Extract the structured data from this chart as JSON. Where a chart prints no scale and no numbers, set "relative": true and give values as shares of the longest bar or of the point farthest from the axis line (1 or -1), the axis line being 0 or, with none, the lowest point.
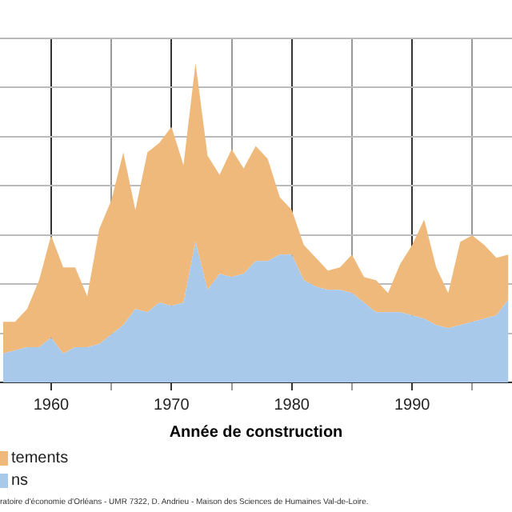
{
  "chart_data": {
    "type": "area",
    "relative": true,
    "stacked": true,
    "xlabel": "Année de construction",
    "x": [
      1956,
      1957,
      1958,
      1959,
      1960,
      1961,
      1962,
      1963,
      1964,
      1965,
      1966,
      1967,
      1968,
      1969,
      1970,
      1971,
      1972,
      1973,
      1974,
      1975,
      1976,
      1977,
      1978,
      1979,
      1980,
      1981,
      1982,
      1983,
      1984,
      1985,
      1986,
      1987,
      1988,
      1989,
      1990,
      1991,
      1992,
      1993,
      1994,
      1995,
      1996,
      1997,
      1998
    ],
    "xlim": [
      1956,
      1998
    ],
    "xticks": [
      1960,
      {
        "value": 1965,
        "label": null
      },
      1970,
      {
        "value": 1975,
        "label": null
      },
      1980,
      {
        "value": 1985,
        "label": null
      },
      1990,
      {
        "value": 1995,
        "label": null
      }
    ],
    "series": [
      {
        "name": "ns",
        "color": "#a9c9eb",
        "values": [
          0.09,
          0.1,
          0.11,
          0.11,
          0.14,
          0.09,
          0.11,
          0.11,
          0.12,
          0.15,
          0.18,
          0.23,
          0.22,
          0.25,
          0.24,
          0.25,
          0.44,
          0.29,
          0.34,
          0.33,
          0.34,
          0.38,
          0.38,
          0.4,
          0.4,
          0.32,
          0.3,
          0.29,
          0.29,
          0.28,
          0.25,
          0.22,
          0.22,
          0.22,
          0.21,
          0.2,
          0.18,
          0.17,
          0.18,
          0.19,
          0.2,
          0.21,
          0.26
        ]
      },
      {
        "name": "tements",
        "color": "#efb97b",
        "values": [
          0.1,
          0.09,
          0.12,
          0.21,
          0.32,
          0.27,
          0.25,
          0.16,
          0.36,
          0.42,
          0.54,
          0.31,
          0.5,
          0.5,
          0.56,
          0.43,
          0.56,
          0.42,
          0.31,
          0.4,
          0.33,
          0.36,
          0.32,
          0.18,
          0.14,
          0.11,
          0.09,
          0.06,
          0.07,
          0.12,
          0.08,
          0.1,
          0.06,
          0.15,
          0.22,
          0.31,
          0.18,
          0.11,
          0.26,
          0.27,
          0.23,
          0.18,
          0.14
        ]
      }
    ],
    "legend": "bottom left",
    "grid": true,
    "annotations": [
      "ratoire d'économie d'Orléans - UMR 7322, D. Andrieu - Maison des Sciences de Humaines Val-de-Loire."
    ]
  }
}
